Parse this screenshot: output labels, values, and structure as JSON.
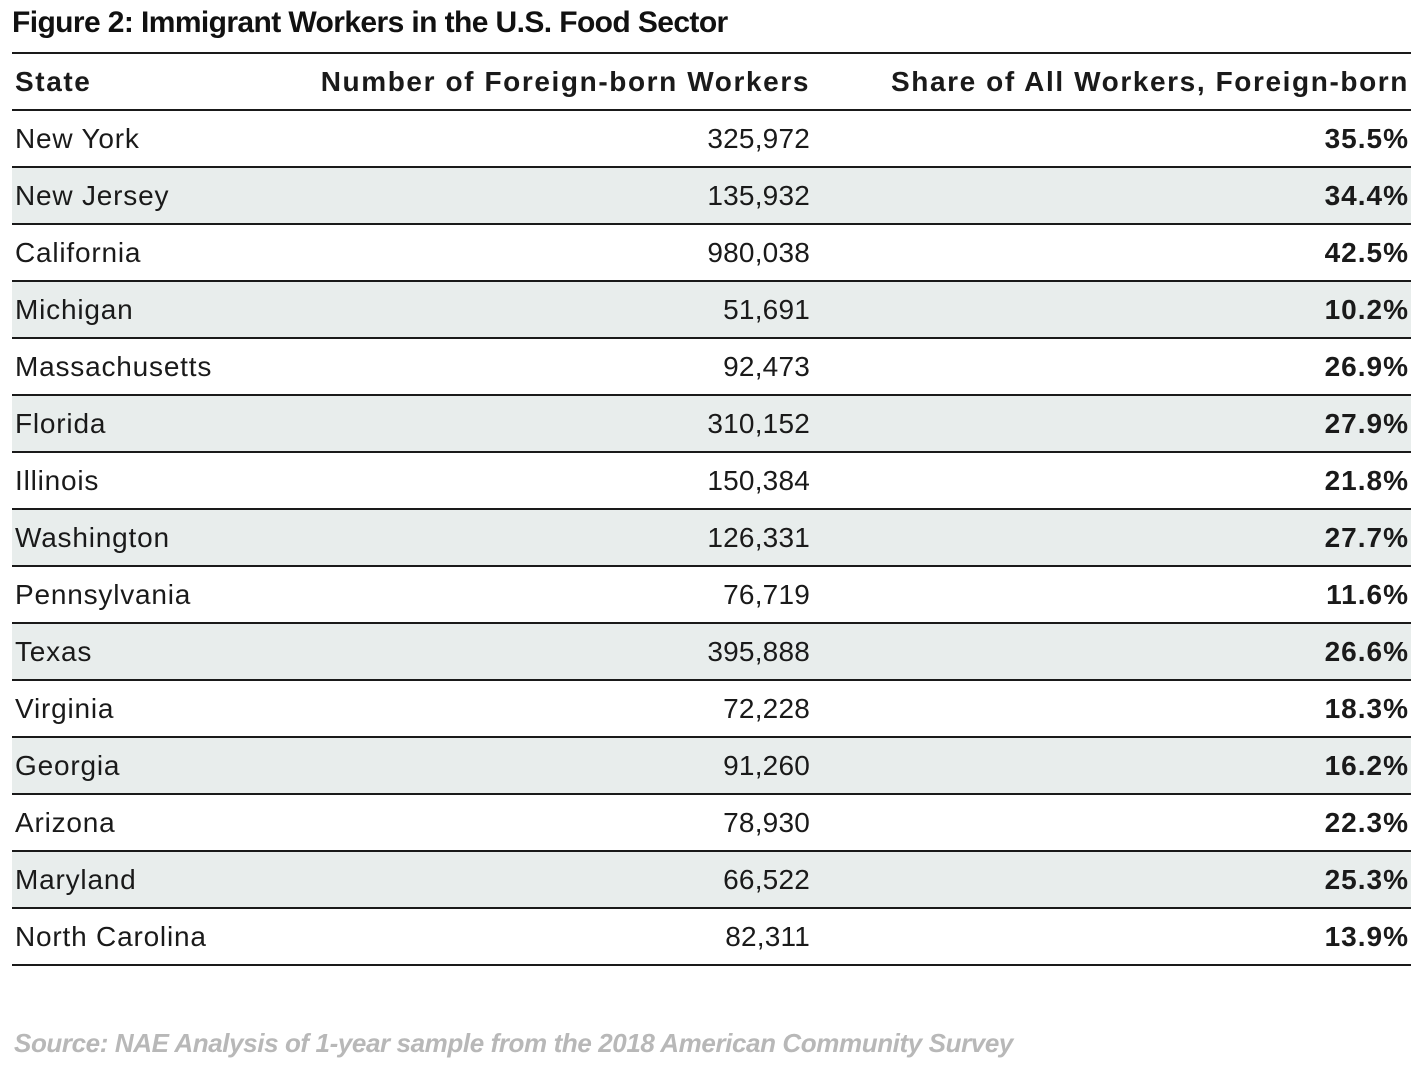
{
  "title": "Figure 2: Immigrant Workers in the U.S. Food Sector",
  "source": "Source: NAE Analysis of 1-year sample from the 2018 American Community Survey",
  "chart_data": {
    "type": "table",
    "title": "Figure 2: Immigrant Workers in the U.S. Food Sector",
    "columns": [
      "State",
      "Number of Foreign-born Workers",
      "Share of All Workers, Foreign-born"
    ],
    "rows": [
      [
        "New York",
        "325,972",
        "35.5%"
      ],
      [
        "New Jersey",
        "135,932",
        "34.4%"
      ],
      [
        "California",
        "980,038",
        "42.5%"
      ],
      [
        "Michigan",
        "51,691",
        "10.2%"
      ],
      [
        "Massachusetts",
        "92,473",
        "26.9%"
      ],
      [
        "Florida",
        "310,152",
        "27.9%"
      ],
      [
        "Illinois",
        "150,384",
        "21.8%"
      ],
      [
        "Washington",
        "126,331",
        "27.7%"
      ],
      [
        "Pennsylvania",
        "76,719",
        "11.6%"
      ],
      [
        "Texas",
        "395,888",
        "26.6%"
      ],
      [
        "Virginia",
        "72,228",
        "18.3%"
      ],
      [
        "Georgia",
        "91,260",
        "16.2%"
      ],
      [
        "Arizona",
        "78,930",
        "22.3%"
      ],
      [
        "Maryland",
        "66,522",
        "25.3%"
      ],
      [
        "North Carolina",
        "82,311",
        "13.9%"
      ]
    ],
    "row_shading": "alternating",
    "colors": {
      "shaded_row": "#e8edec",
      "rule": "#1a1a1a",
      "source_text": "#b8b8b8"
    }
  }
}
